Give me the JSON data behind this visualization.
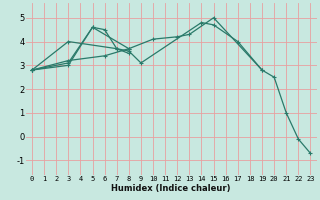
{
  "xlabel": "Humidex (Indice chaleur)",
  "bg_color": "#c8e8e0",
  "grid_color": "#e8a0a0",
  "line_color": "#2a7a6a",
  "marker": "+",
  "xlim": [
    -0.5,
    23.5
  ],
  "ylim": [
    -1.6,
    5.6
  ],
  "yticks": [
    -1,
    0,
    1,
    2,
    3,
    4,
    5
  ],
  "xticks": [
    0,
    1,
    2,
    3,
    4,
    5,
    6,
    7,
    8,
    9,
    10,
    11,
    12,
    13,
    14,
    15,
    16,
    17,
    18,
    19,
    20,
    21,
    22,
    23
  ],
  "s1x": [
    0,
    3,
    5,
    6,
    7,
    8,
    9,
    14,
    15,
    17,
    19
  ],
  "s1y": [
    2.8,
    3.0,
    4.6,
    4.5,
    3.7,
    3.6,
    3.1,
    4.8,
    4.7,
    4.0,
    2.8
  ],
  "s2x": [
    0,
    3,
    5,
    8,
    10,
    12,
    13,
    15,
    19,
    20,
    21,
    22,
    23
  ],
  "s2y": [
    2.8,
    3.1,
    4.6,
    3.7,
    4.1,
    4.2,
    4.3,
    5.0,
    2.8,
    2.5,
    1.0,
    -0.1,
    -0.7
  ],
  "s3x": [
    0,
    3,
    6,
    8
  ],
  "s3y": [
    2.8,
    3.2,
    3.4,
    3.7
  ],
  "s4x": [
    0,
    3,
    7,
    8
  ],
  "s4y": [
    2.8,
    4.0,
    3.7,
    3.5
  ],
  "lw": 0.9,
  "markersize": 3,
  "tick_fontsize": 5,
  "xlabel_fontsize": 6
}
